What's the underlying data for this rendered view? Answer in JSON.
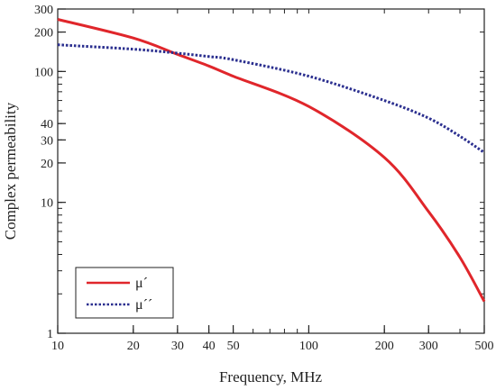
{
  "chart_data": {
    "type": "line",
    "xlabel": "Frequency, MHz",
    "ylabel": "Complex permeability",
    "xscale": "log",
    "yscale": "log",
    "xlim": [
      10,
      500
    ],
    "ylim": [
      1,
      300
    ],
    "x_ticks": [
      10,
      20,
      30,
      40,
      50,
      100,
      200,
      300,
      500
    ],
    "y_ticks": [
      1,
      10,
      20,
      30,
      40,
      100,
      200,
      300
    ],
    "grid": false,
    "legend_position": "bottom-left",
    "series": [
      {
        "name": "μ´",
        "style": "solid",
        "color": "#e0262b",
        "x": [
          10,
          20,
          30,
          40,
          50,
          100,
          200,
          300,
          400,
          500
        ],
        "y": [
          250,
          180,
          135,
          110,
          92,
          54,
          22,
          8.5,
          3.8,
          1.75
        ]
      },
      {
        "name": "μ´´",
        "style": "dotted",
        "color": "#2b2f8f",
        "x": [
          10,
          20,
          30,
          40,
          50,
          100,
          200,
          300,
          400,
          500
        ],
        "y": [
          160,
          148,
          138,
          130,
          123,
          92,
          60,
          44,
          32,
          24
        ]
      }
    ]
  }
}
